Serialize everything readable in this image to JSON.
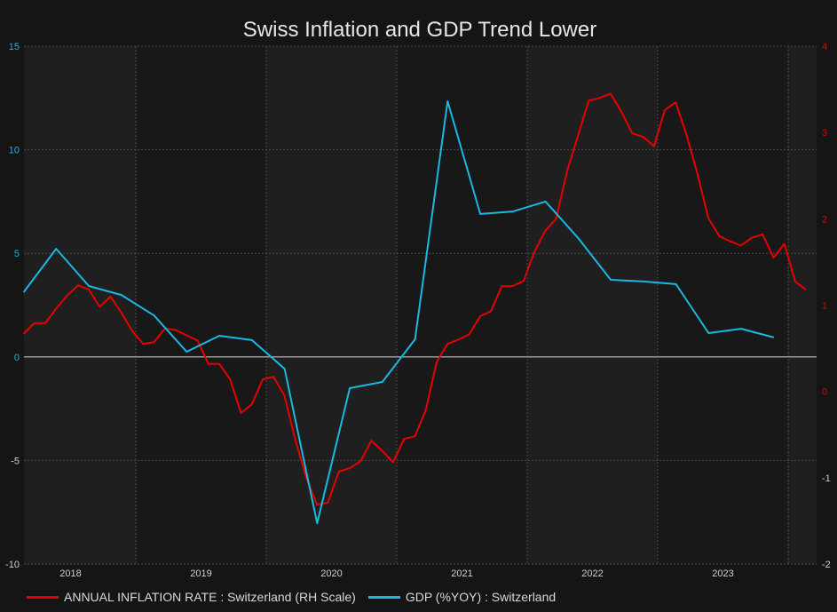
{
  "chart_data": {
    "type": "line",
    "title": "Swiss Inflation and GDP Trend Lower",
    "xlabel": "",
    "x_tick_labels": [
      "2018",
      "2019",
      "2020",
      "2021",
      "2022",
      "2023"
    ],
    "x_range": [
      2018.14,
      2024.22
    ],
    "left_axis": {
      "label": "",
      "ylim": [
        -10,
        15
      ],
      "ticks": [
        "15",
        "10",
        "5",
        "0",
        "-5",
        "-10"
      ],
      "tick_values": [
        15,
        10,
        5,
        0,
        -5,
        -10
      ],
      "color": "#1ab3e6"
    },
    "right_axis": {
      "label": "RH Scale",
      "ylim": [
        -2,
        4
      ],
      "ticks": [
        "4",
        "3",
        "2",
        "1",
        "0",
        "-1",
        "-2"
      ],
      "tick_values": [
        4,
        3,
        2,
        1,
        0,
        -1,
        -2
      ],
      "color": "#e00000"
    },
    "grid": true,
    "legend_position": "bottom-left",
    "series": [
      {
        "name": "ANNUAL INFLATION RATE : Switzerland (RH Scale)",
        "axis": "right",
        "color": "#e60000",
        "frequency": "monthly",
        "start": 2018.14,
        "step": 0.0833,
        "values": [
          0.67,
          0.79,
          0.79,
          0.96,
          1.11,
          1.23,
          1.18,
          0.98,
          1.1,
          0.91,
          0.7,
          0.55,
          0.57,
          0.73,
          0.71,
          0.65,
          0.59,
          0.32,
          0.32,
          0.14,
          -0.25,
          -0.15,
          0.14,
          0.17,
          -0.05,
          -0.56,
          -1.0,
          -1.31,
          -1.29,
          -0.93,
          -0.89,
          -0.81,
          -0.57,
          -0.69,
          -0.82,
          -0.55,
          -0.52,
          -0.22,
          0.34,
          0.55,
          0.6,
          0.66,
          0.87,
          0.93,
          1.22,
          1.22,
          1.28,
          1.62,
          1.86,
          2.0,
          2.55,
          2.96,
          3.37,
          3.4,
          3.45,
          3.24,
          2.99,
          2.95,
          2.84,
          3.26,
          3.35,
          2.97,
          2.52,
          2.01,
          1.8,
          1.74,
          1.69,
          1.78,
          1.82,
          1.55,
          1.71,
          1.27,
          1.18
        ]
      },
      {
        "name": "GDP (%YOY) : Switzerland",
        "axis": "left",
        "color": "#1ab8e0",
        "frequency": "quarterly",
        "start": 2018.14,
        "step": 0.25,
        "values": [
          3.12,
          5.22,
          3.42,
          2.99,
          2.0,
          0.25,
          1.02,
          0.81,
          -0.57,
          -8.03,
          -1.51,
          -1.21,
          0.85,
          12.34,
          6.9,
          7.02,
          7.5,
          5.74,
          3.72,
          3.64,
          3.51,
          1.15,
          1.36,
          0.94
        ]
      }
    ]
  },
  "legend": [
    {
      "label": "ANNUAL INFLATION RATE : Switzerland (RH Scale)",
      "color": "#e60000"
    },
    {
      "label": "GDP (%YOY) : Switzerland",
      "color": "#1ab8e0"
    }
  ]
}
